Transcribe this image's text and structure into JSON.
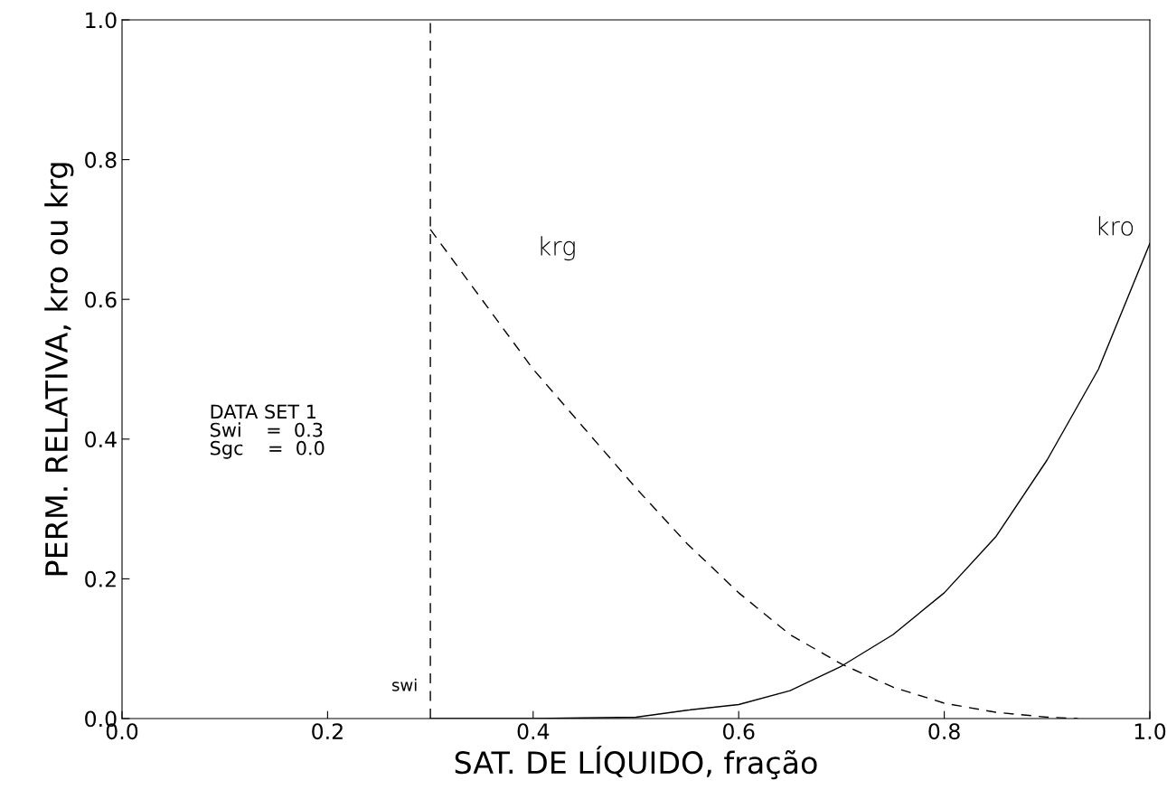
{
  "chart_data": {
    "type": "line",
    "xlabel": "SAT. DE LÍQUIDO, fração",
    "ylabel": "PERM. RELATIVA, kro ou krg",
    "xlim": [
      0,
      1
    ],
    "ylim": [
      0,
      1
    ],
    "xticks": [
      {
        "value": 0,
        "label": "0.0"
      },
      {
        "value": 0.2,
        "label": "0.2"
      },
      {
        "value": 0.4,
        "label": "0.4"
      },
      {
        "value": 0.6,
        "label": "0.6"
      },
      {
        "value": 0.8,
        "label": "0.8"
      },
      {
        "value": 1,
        "label": "1.0"
      }
    ],
    "yticks": [
      {
        "value": 0,
        "label": "0.0"
      },
      {
        "value": 0.2,
        "label": "0.2"
      },
      {
        "value": 0.4,
        "label": "0.4"
      },
      {
        "value": 0.6,
        "label": "0.6"
      },
      {
        "value": 0.8,
        "label": "0.8"
      },
      {
        "value": 1,
        "label": "1.0"
      }
    ],
    "grid": false,
    "legend": false,
    "series": [
      {
        "name": "krg",
        "color": "#000000",
        "line_style": "dashed",
        "x": [
          0.3,
          0.35,
          0.4,
          0.45,
          0.5,
          0.55,
          0.6,
          0.65,
          0.7,
          0.75,
          0.8,
          0.85,
          0.9,
          0.93
        ],
        "values": [
          0.7,
          0.6,
          0.5,
          0.415,
          0.33,
          0.25,
          0.18,
          0.12,
          0.078,
          0.045,
          0.022,
          0.009,
          0.002,
          0
        ]
      },
      {
        "name": "kro",
        "color": "#000000",
        "line_style": "solid",
        "x": [
          0.3,
          0.4,
          0.5,
          0.55,
          0.6,
          0.65,
          0.7,
          0.75,
          0.8,
          0.85,
          0.9,
          0.95,
          1.0
        ],
        "values": [
          0,
          0,
          0.002,
          0.012,
          0.02,
          0.04,
          0.075,
          0.12,
          0.18,
          0.26,
          0.37,
          0.5,
          0.68
        ]
      }
    ],
    "ref_lines": [
      {
        "axis": "x",
        "value": 0.3,
        "label": "swi",
        "color": "#000000",
        "line_style": "dashed"
      }
    ],
    "annotations": [
      "DATA SET 1\nSwi    =  0.3\nSgc    =  0.0"
    ]
  }
}
